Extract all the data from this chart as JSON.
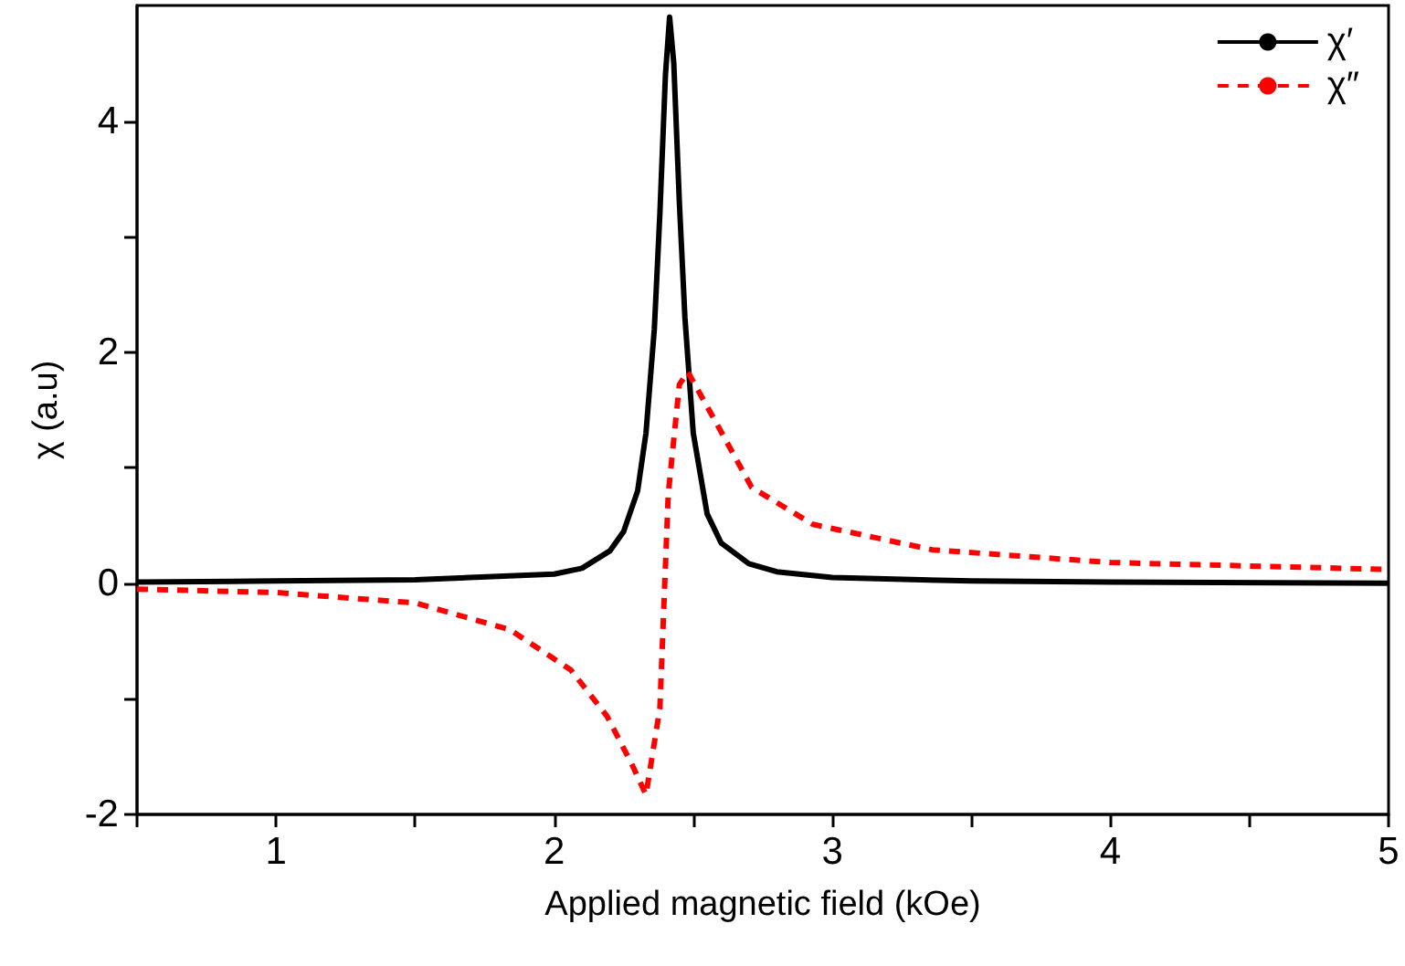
{
  "chart_data": {
    "type": "line",
    "xlabel": "Applied magnetic field (kOe)",
    "ylabel": "χ (a.u)",
    "xlim": [
      0.5,
      5
    ],
    "ylim": [
      -2,
      5
    ],
    "xticks": [
      {
        "value": 0.5,
        "label": null
      },
      1,
      {
        "value": 1.5,
        "label": null
      },
      2,
      {
        "value": 2.5,
        "label": null
      },
      3,
      {
        "value": 3.5,
        "label": null
      },
      4,
      {
        "value": 4.5,
        "label": null
      },
      5
    ],
    "yticks": [
      -2,
      {
        "value": -1,
        "label": null
      },
      0,
      {
        "value": 1,
        "label": null
      },
      2,
      {
        "value": 3,
        "label": null
      },
      4
    ],
    "legend": "top right",
    "grid": false,
    "marker": "none",
    "series": [
      {
        "name": "χ′",
        "color": "#000000",
        "line_style": "solid",
        "x": [
          0.5,
          1,
          1.5,
          2,
          2.1,
          2.2,
          2.25,
          2.3,
          2.33,
          2.36,
          2.38,
          2.4,
          2.415,
          2.43,
          2.45,
          2.47,
          2.5,
          2.55,
          2.6,
          2.7,
          2.8,
          3,
          3.5,
          4,
          5
        ],
        "values": [
          0.01,
          0.02,
          0.03,
          0.08,
          0.13,
          0.28,
          0.45,
          0.8,
          1.3,
          2.2,
          3.2,
          4.4,
          4.9,
          4.5,
          3.3,
          2.3,
          1.3,
          0.6,
          0.35,
          0.17,
          0.1,
          0.05,
          0.02,
          0.01,
          0
        ]
      },
      {
        "name": "χ″",
        "color": "#ff0000",
        "line_style": "dashed",
        "x": [
          0.5,
          1,
          1.5,
          1.84,
          2.06,
          2.19,
          2.28,
          2.33,
          2.38,
          2.41,
          2.45,
          2.48,
          2.58,
          2.71,
          2.93,
          3.36,
          4,
          5
        ],
        "values": [
          -0.05,
          -0.08,
          -0.17,
          -0.4,
          -0.75,
          -1.15,
          -1.57,
          -1.83,
          -1.08,
          0.77,
          1.72,
          1.83,
          1.4,
          0.83,
          0.51,
          0.29,
          0.18,
          0.12
        ]
      }
    ]
  }
}
